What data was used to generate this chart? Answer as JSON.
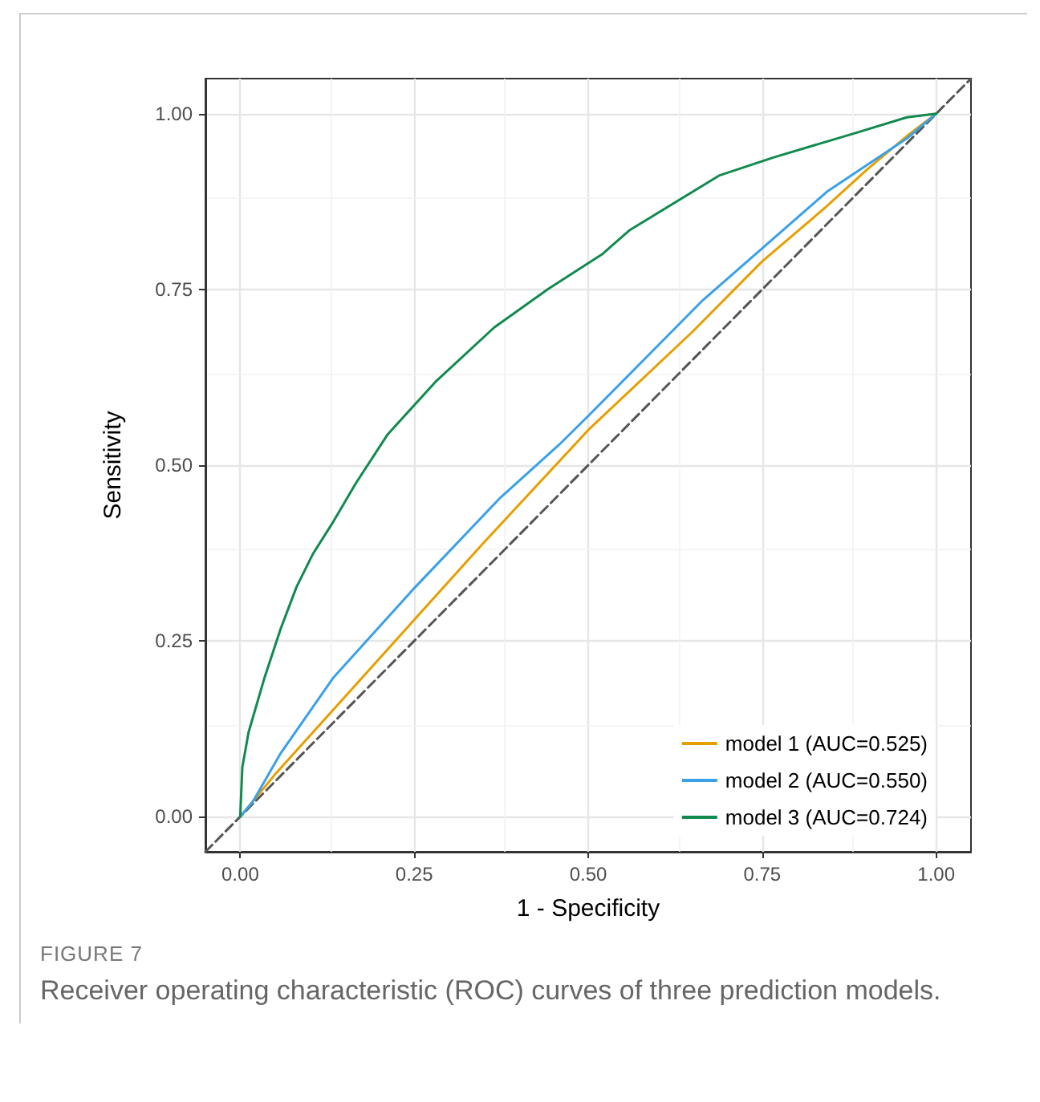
{
  "chart_data": {
    "type": "line",
    "xlabel": "1 - Specificity",
    "ylabel": "Sensitivity",
    "xlim": [
      -0.05,
      1.05
    ],
    "ylim": [
      -0.05,
      1.05
    ],
    "xticks": [
      {
        "value": 0,
        "label": "0.00"
      },
      0.25,
      {
        "value": 0.5,
        "label": "0.50"
      },
      0.75,
      {
        "value": 1,
        "label": "1.00"
      }
    ],
    "yticks": [
      {
        "value": 0,
        "label": "0.00"
      },
      0.25,
      {
        "value": 0.5,
        "label": "0.50"
      },
      0.75,
      {
        "value": 1,
        "label": "1.00"
      }
    ],
    "grid": true,
    "legend": "bottom right",
    "marker": "none",
    "series": [
      {
        "name": "model 1 (AUC=0.525)",
        "color": "#e69f00",
        "x": [
          0,
          0.05,
          0.15,
          0.25,
          0.35,
          0.5,
          0.65,
          0.75,
          0.84,
          0.9,
          0.96,
          1
        ],
        "values": [
          0,
          0.06,
          0.17,
          0.28,
          0.39,
          0.55,
          0.69,
          0.79,
          0.866,
          0.92,
          0.97,
          1
        ]
      },
      {
        "name": "model 2 (AUC=0.550)",
        "color": "#3aa0e8",
        "x": [
          0,
          0.018,
          0.058,
          0.134,
          0.25,
          0.374,
          0.457,
          0.497,
          0.665,
          0.843,
          0.958,
          1
        ],
        "values": [
          0,
          0.021,
          0.09,
          0.198,
          0.325,
          0.454,
          0.528,
          0.567,
          0.735,
          0.889,
          0.965,
          1
        ]
      },
      {
        "name": "model 3 (AUC=0.724)",
        "color": "#118a4e",
        "x": [
          0,
          0.003,
          0.012,
          0.035,
          0.058,
          0.081,
          0.104,
          0.134,
          0.166,
          0.212,
          0.282,
          0.365,
          0.443,
          0.52,
          0.559,
          0.688,
          0.767,
          0.882,
          0.958,
          1
        ],
        "values": [
          0,
          0.07,
          0.12,
          0.198,
          0.267,
          0.327,
          0.373,
          0.42,
          0.474,
          0.544,
          0.62,
          0.696,
          0.751,
          0.8,
          0.834,
          0.912,
          0.938,
          0.972,
          0.995,
          1
        ]
      },
      {
        "color": "#555555",
        "line_style": "dashed",
        "x": [
          -0.05,
          1.05
        ],
        "values": [
          -0.05,
          1.05
        ]
      }
    ],
    "annotations": [
      "FIGURE 7",
      "Receiver operating characteristic (ROC) curves of three prediction models."
    ]
  }
}
